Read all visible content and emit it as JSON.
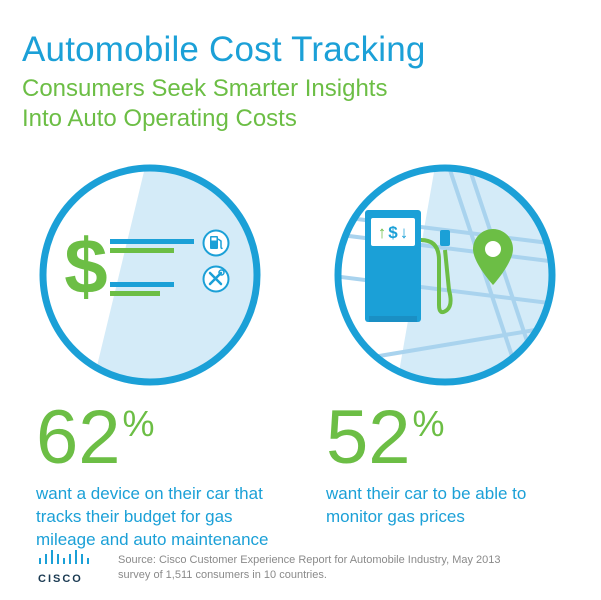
{
  "header": {
    "title": "Automobile Cost Tracking",
    "subtitle_line1": "Consumers Seek Smarter Insights",
    "subtitle_line2": "Into Auto Operating Costs"
  },
  "stats": [
    {
      "value": "62",
      "unit": "%",
      "line1": "want a device on their car that",
      "line2": "tracks their budget for gas",
      "line3": "mileage and auto maintenance"
    },
    {
      "value": "52",
      "unit": "%",
      "line1": "want their car to be able to",
      "line2": "monitor gas prices"
    }
  ],
  "pump_display": {
    "up": "↑",
    "dollar": "$",
    "down": "↓"
  },
  "footer": {
    "logo_text": "CISCO",
    "source_line1": "Source: Cisco Customer Experience Report for Automobile Industry, May 2013",
    "source_line2": "survey of 1,511 consumers in 10 countries."
  },
  "colors": {
    "blue": "#1ba0d7",
    "green": "#6cbe45",
    "light_blue": "#d4ebf8",
    "dark": "#1a3a52"
  },
  "icons": [
    "dollar-sign-icon",
    "gas-pump-icon",
    "tools-icon",
    "map-pin-icon",
    "cisco-logo-icon"
  ]
}
